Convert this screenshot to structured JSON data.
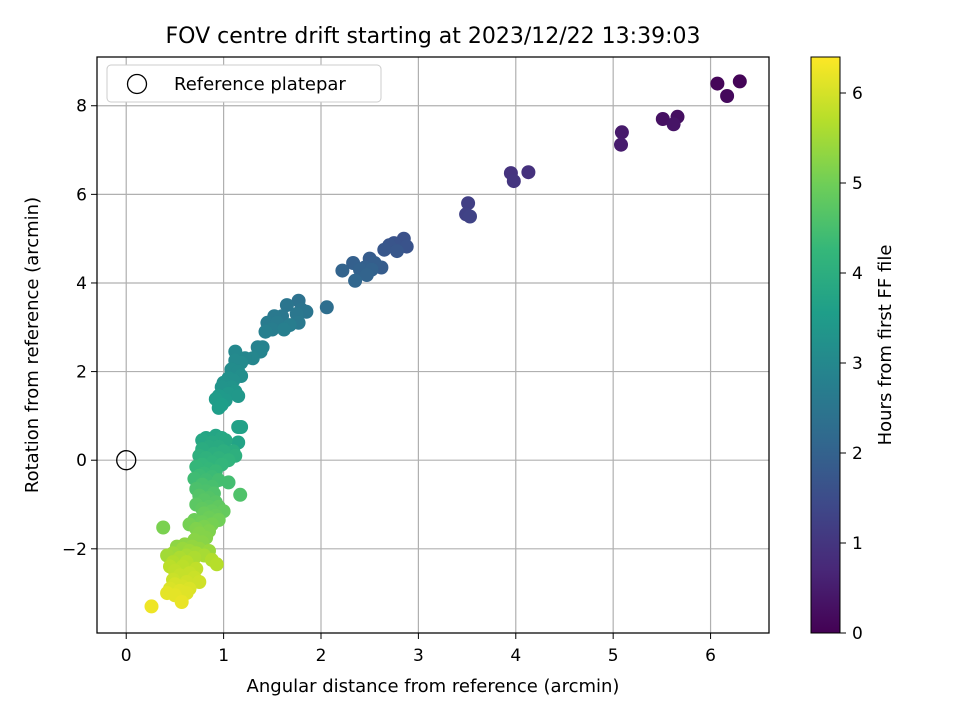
{
  "chart_data": {
    "type": "scatter",
    "title": "FOV centre drift starting at 2023/12/22 13:39:03",
    "xlabel": "Angular distance from reference (arcmin)",
    "ylabel": "Rotation from reference (arcmin)",
    "xlim": [
      -0.3,
      6.6
    ],
    "ylim": [
      -3.9,
      9.1
    ],
    "xticks": [
      0,
      1,
      2,
      3,
      4,
      5,
      6
    ],
    "xtick_labels": [
      "0",
      "1",
      "2",
      "3",
      "4",
      "5",
      "6"
    ],
    "yticks": [
      -2,
      0,
      2,
      4,
      6,
      8
    ],
    "ytick_labels": [
      "−2",
      "0",
      "2",
      "4",
      "6",
      "8"
    ],
    "grid": true,
    "legend": {
      "position": "top-left",
      "entries": [
        {
          "label": "Reference platepar",
          "marker": "open-circle"
        }
      ]
    },
    "reference_point": {
      "x": 0,
      "y": 0
    },
    "colorbar": {
      "label": "Hours from first FF file",
      "range": [
        0,
        6.4
      ],
      "ticks": [
        0,
        1,
        2,
        3,
        4,
        5,
        6
      ],
      "tick_labels": [
        "0",
        "1",
        "2",
        "3",
        "4",
        "5",
        "6"
      ],
      "colormap": "viridis",
      "colors": [
        "#440154",
        "#482878",
        "#3e4989",
        "#31688e",
        "#26828e",
        "#1f9e89",
        "#35b779",
        "#6ece58",
        "#b5de2b",
        "#fde725"
      ]
    },
    "series": [
      {
        "points": [
          [
            6.3,
            8.55,
            0.05
          ],
          [
            6.07,
            8.5,
            0.1
          ],
          [
            6.17,
            8.22,
            0.15
          ],
          [
            5.66,
            7.75,
            0.25
          ],
          [
            5.51,
            7.7,
            0.3
          ],
          [
            5.62,
            7.58,
            0.35
          ],
          [
            5.09,
            7.4,
            0.45
          ],
          [
            5.08,
            7.12,
            0.5
          ],
          [
            4.13,
            6.5,
            0.9
          ],
          [
            3.95,
            6.48,
            0.95
          ],
          [
            3.98,
            6.3,
            1.0
          ],
          [
            3.51,
            5.8,
            1.2
          ],
          [
            3.49,
            5.55,
            1.25
          ],
          [
            3.53,
            5.5,
            1.3
          ],
          [
            2.85,
            5.0,
            1.6
          ],
          [
            2.88,
            4.82,
            1.65
          ],
          [
            2.75,
            4.9,
            1.65
          ],
          [
            2.7,
            4.85,
            1.7
          ],
          [
            2.65,
            4.75,
            1.75
          ],
          [
            2.78,
            4.72,
            1.75
          ],
          [
            2.62,
            4.35,
            1.85
          ],
          [
            2.5,
            4.55,
            1.85
          ],
          [
            2.55,
            4.45,
            1.9
          ],
          [
            2.45,
            4.35,
            1.95
          ],
          [
            2.33,
            4.45,
            1.95
          ],
          [
            2.4,
            4.3,
            2.0
          ],
          [
            2.52,
            4.3,
            2.0
          ],
          [
            2.22,
            4.28,
            2.05
          ],
          [
            2.47,
            4.18,
            2.05
          ],
          [
            2.35,
            4.05,
            2.1
          ],
          [
            2.06,
            3.45,
            2.3
          ],
          [
            1.77,
            3.6,
            2.4
          ],
          [
            1.8,
            3.4,
            2.45
          ],
          [
            1.65,
            3.5,
            2.5
          ],
          [
            1.85,
            3.35,
            2.5
          ],
          [
            1.75,
            3.3,
            2.55
          ],
          [
            1.6,
            3.25,
            2.55
          ],
          [
            1.52,
            3.25,
            2.6
          ],
          [
            1.77,
            3.1,
            2.6
          ],
          [
            1.45,
            3.1,
            2.65
          ],
          [
            1.55,
            3.1,
            2.65
          ],
          [
            1.68,
            3.05,
            2.7
          ],
          [
            1.5,
            2.95,
            2.7
          ],
          [
            1.62,
            2.95,
            2.75
          ],
          [
            1.43,
            2.9,
            2.75
          ],
          [
            1.35,
            2.55,
            2.85
          ],
          [
            1.4,
            2.55,
            2.85
          ],
          [
            1.38,
            2.45,
            2.9
          ],
          [
            1.3,
            2.3,
            2.95
          ],
          [
            1.22,
            2.3,
            2.95
          ],
          [
            1.12,
            2.45,
            3.0
          ],
          [
            1.12,
            2.25,
            3.05
          ],
          [
            1.18,
            2.2,
            3.05
          ],
          [
            1.08,
            2.05,
            3.1
          ],
          [
            1.15,
            2.0,
            3.1
          ],
          [
            1.18,
            1.9,
            3.15
          ],
          [
            1.05,
            1.85,
            3.2
          ],
          [
            1.1,
            1.8,
            3.2
          ],
          [
            1.0,
            1.75,
            3.25
          ],
          [
            1.08,
            1.65,
            3.3
          ],
          [
            0.98,
            1.65,
            3.3
          ],
          [
            1.12,
            1.55,
            3.35
          ],
          [
            1.05,
            1.5,
            3.4
          ],
          [
            1.15,
            1.45,
            3.4
          ],
          [
            0.95,
            1.45,
            3.45
          ],
          [
            1.02,
            1.35,
            3.45
          ],
          [
            0.92,
            1.38,
            3.5
          ],
          [
            0.98,
            1.25,
            3.55
          ],
          [
            0.95,
            1.18,
            3.55
          ],
          [
            1.15,
            0.75,
            3.65
          ],
          [
            1.18,
            0.75,
            3.65
          ],
          [
            1.15,
            0.4,
            3.7
          ],
          [
            0.82,
            0.5,
            3.75
          ],
          [
            0.92,
            0.55,
            3.75
          ],
          [
            0.98,
            0.5,
            3.8
          ],
          [
            0.78,
            0.45,
            3.8
          ],
          [
            0.88,
            0.4,
            3.85
          ],
          [
            1.02,
            0.45,
            3.85
          ],
          [
            0.85,
            0.3,
            3.9
          ],
          [
            0.95,
            0.3,
            3.9
          ],
          [
            1.1,
            0.2,
            3.95
          ],
          [
            0.78,
            0.25,
            3.95
          ],
          [
            1.0,
            0.2,
            4.0
          ],
          [
            0.9,
            0.15,
            4.0
          ],
          [
            1.12,
            0.1,
            4.05
          ],
          [
            0.75,
            0.1,
            4.05
          ],
          [
            0.82,
            0.05,
            4.1
          ],
          [
            0.95,
            0.05,
            4.1
          ],
          [
            1.05,
            0.0,
            4.15
          ],
          [
            0.88,
            -0.05,
            4.15
          ],
          [
            0.78,
            -0.1,
            4.2
          ],
          [
            0.98,
            -0.1,
            4.2
          ],
          [
            0.72,
            -0.15,
            4.25
          ],
          [
            0.85,
            -0.2,
            4.25
          ],
          [
            0.92,
            -0.25,
            4.3
          ],
          [
            0.8,
            -0.3,
            4.3
          ],
          [
            0.75,
            -0.35,
            4.35
          ],
          [
            0.88,
            -0.38,
            4.35
          ],
          [
            0.7,
            -0.42,
            4.4
          ],
          [
            0.82,
            -0.45,
            4.4
          ],
          [
            0.95,
            -0.45,
            4.45
          ],
          [
            1.05,
            -0.5,
            4.45
          ],
          [
            0.78,
            -0.55,
            4.5
          ],
          [
            0.88,
            -0.6,
            4.5
          ],
          [
            0.72,
            -0.65,
            4.55
          ],
          [
            0.82,
            -0.7,
            4.55
          ],
          [
            0.9,
            -0.75,
            4.6
          ],
          [
            1.17,
            -0.78,
            4.6
          ],
          [
            0.75,
            -0.8,
            4.65
          ],
          [
            0.85,
            -0.85,
            4.65
          ],
          [
            0.8,
            -0.9,
            4.7
          ],
          [
            0.92,
            -0.95,
            4.7
          ],
          [
            0.72,
            -1.0,
            4.75
          ],
          [
            0.85,
            -1.05,
            4.75
          ],
          [
            0.95,
            -1.05,
            4.8
          ],
          [
            0.78,
            -1.1,
            4.8
          ],
          [
            0.88,
            -1.15,
            4.85
          ],
          [
            1.0,
            -1.15,
            4.85
          ],
          [
            0.8,
            -1.2,
            4.9
          ],
          [
            0.92,
            -1.25,
            4.9
          ],
          [
            0.85,
            -1.3,
            4.95
          ],
          [
            0.7,
            -1.35,
            4.95
          ],
          [
            0.95,
            -1.35,
            5.0
          ],
          [
            0.78,
            -1.4,
            5.0
          ],
          [
            0.88,
            -1.45,
            5.05
          ],
          [
            0.65,
            -1.45,
            5.05
          ],
          [
            0.8,
            -1.5,
            5.1
          ],
          [
            0.38,
            -1.52,
            5.1
          ],
          [
            0.72,
            -1.55,
            5.15
          ],
          [
            0.85,
            -1.6,
            5.15
          ],
          [
            0.75,
            -1.65,
            5.2
          ],
          [
            0.82,
            -1.75,
            5.2
          ],
          [
            0.7,
            -1.8,
            5.25
          ],
          [
            0.78,
            -1.85,
            5.25
          ],
          [
            0.6,
            -1.9,
            5.3
          ],
          [
            0.52,
            -1.95,
            5.3
          ],
          [
            0.68,
            -1.95,
            5.35
          ],
          [
            0.75,
            -2.0,
            5.35
          ],
          [
            0.58,
            -2.0,
            5.4
          ],
          [
            0.85,
            -2.05,
            5.4
          ],
          [
            0.65,
            -2.05,
            5.45
          ],
          [
            0.48,
            -2.1,
            5.45
          ],
          [
            0.72,
            -2.1,
            5.5
          ],
          [
            0.42,
            -2.15,
            5.5
          ],
          [
            0.62,
            -2.15,
            5.55
          ],
          [
            0.8,
            -2.15,
            5.55
          ],
          [
            0.55,
            -2.2,
            5.6
          ],
          [
            0.7,
            -2.2,
            5.6
          ],
          [
            0.88,
            -2.25,
            5.65
          ],
          [
            0.48,
            -2.3,
            5.65
          ],
          [
            0.62,
            -2.3,
            5.7
          ],
          [
            0.93,
            -2.35,
            5.7
          ],
          [
            0.45,
            -2.4,
            5.75
          ],
          [
            0.58,
            -2.4,
            5.75
          ],
          [
            0.72,
            -2.45,
            5.8
          ],
          [
            0.5,
            -2.5,
            5.8
          ],
          [
            0.65,
            -2.55,
            5.85
          ],
          [
            0.55,
            -2.6,
            5.85
          ],
          [
            0.7,
            -2.65,
            5.9
          ],
          [
            0.48,
            -2.7,
            5.9
          ],
          [
            0.62,
            -2.75,
            5.95
          ],
          [
            0.75,
            -2.75,
            5.95
          ],
          [
            0.5,
            -2.8,
            6.0
          ],
          [
            0.58,
            -2.85,
            6.0
          ],
          [
            0.65,
            -2.9,
            6.05
          ],
          [
            0.45,
            -2.9,
            6.05
          ],
          [
            0.55,
            -2.95,
            6.1
          ],
          [
            0.62,
            -3.0,
            6.1
          ],
          [
            0.42,
            -3.0,
            6.15
          ],
          [
            0.5,
            -3.05,
            6.15
          ],
          [
            0.57,
            -3.2,
            6.2
          ],
          [
            0.26,
            -3.3,
            6.25
          ]
        ]
      }
    ]
  }
}
